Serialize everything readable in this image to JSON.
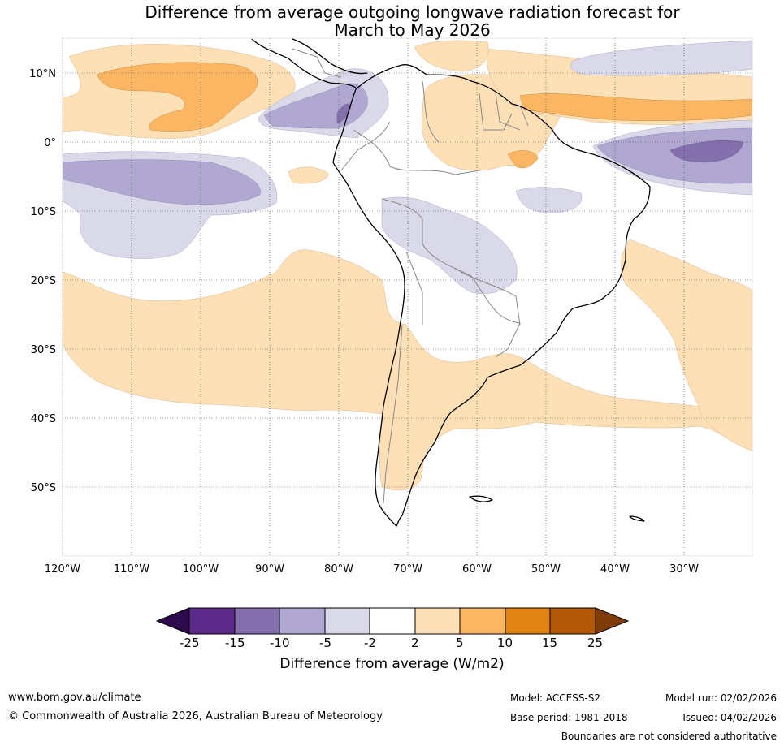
{
  "title_line1": "Difference from average outgoing longwave radiation forecast for",
  "title_line2": "March to May 2026",
  "lat_labels": [
    "10°N",
    "0°",
    "10°S",
    "20°S",
    "30°S",
    "40°S",
    "50°S"
  ],
  "lon_labels": [
    "120°W",
    "110°W",
    "100°W",
    "90°W",
    "80°W",
    "70°W",
    "60°W",
    "50°W",
    "40°W",
    "30°W"
  ],
  "colorbar": {
    "ticks": [
      "-25",
      "-15",
      "-10",
      "-5",
      "-2",
      "2",
      "5",
      "10",
      "15",
      "25"
    ],
    "colors": [
      "#2c0a4b",
      "#5b2a8a",
      "#8470ac",
      "#b0a8d0",
      "#d9d9ea",
      "#ffffff",
      "#fde0b6",
      "#fbb664",
      "#e08414",
      "#b35806",
      "#7f3b08"
    ],
    "title": "Difference from average (W/m2)"
  },
  "footer": {
    "website": "www.bom.gov.au/climate",
    "copyright": "© Commonwealth of Australia 2026, Australian Bureau of Meteorology",
    "model": "Model: ACCESS-S2",
    "base_period": "Base period: 1981-2018",
    "model_run": "Model run: 02/02/2026",
    "issued": "Issued: 04/02/2026",
    "boundaries_note": "Boundaries are not considered authoritative"
  }
}
